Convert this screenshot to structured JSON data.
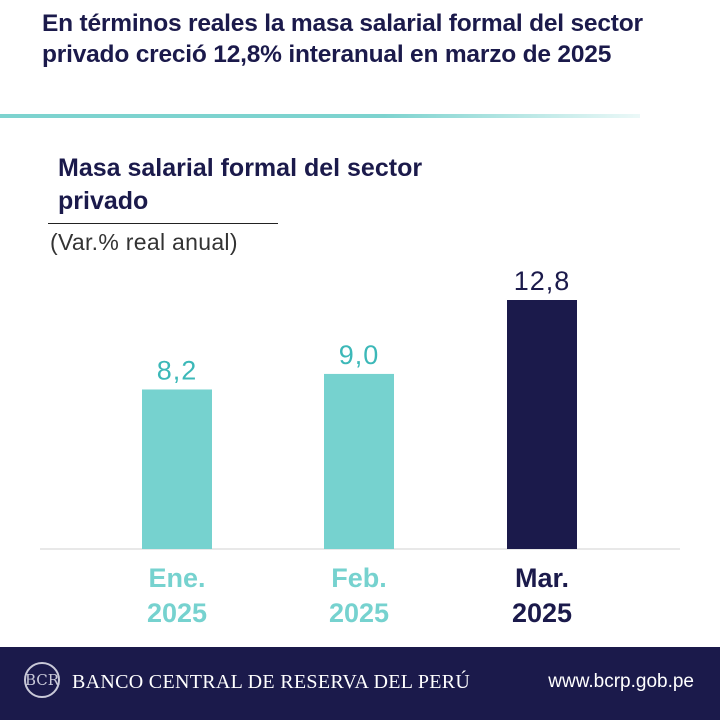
{
  "headline": "En términos reales la masa salarial formal del sector privado creció 12,8% interanual en marzo de 2025",
  "chart_data": {
    "type": "bar",
    "title": "Masa salarial formal del sector privado",
    "subtitle": "(Var.% real anual)",
    "categories": [
      {
        "month": "Ene.",
        "year": "2025"
      },
      {
        "month": "Feb.",
        "year": "2025"
      },
      {
        "month": "Mar.",
        "year": "2025"
      }
    ],
    "values": [
      8.2,
      9.0,
      12.8
    ],
    "value_labels": [
      "8,2",
      "9,0",
      "12,8"
    ],
    "bar_colors": [
      "#76d2cf",
      "#76d2cf",
      "#1b1a4b"
    ],
    "ylim": [
      0,
      12.8
    ],
    "grid": false,
    "legend": "none"
  },
  "footer": {
    "logo_icon": "bcrp-seal-icon",
    "logo_text": "BCR",
    "bank_name": "BANCO CENTRAL DE RESERVA DEL PERÚ",
    "url": "www.bcrp.gob.pe"
  }
}
